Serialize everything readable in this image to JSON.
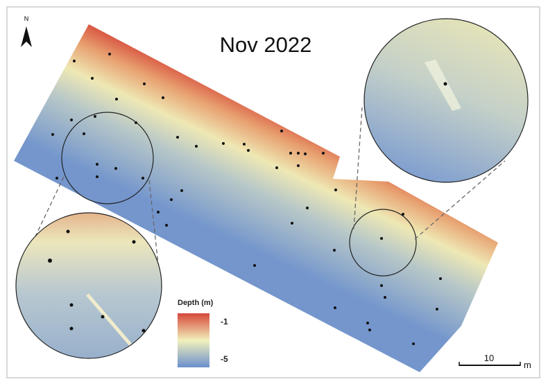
{
  "north_arrow": {
    "label": "N"
  },
  "title": "Nov 2022",
  "legend": {
    "title": "Depth (m)",
    "max": -1,
    "min": -5
  },
  "scale_bar": {
    "length": 10,
    "unit": "m"
  }
}
